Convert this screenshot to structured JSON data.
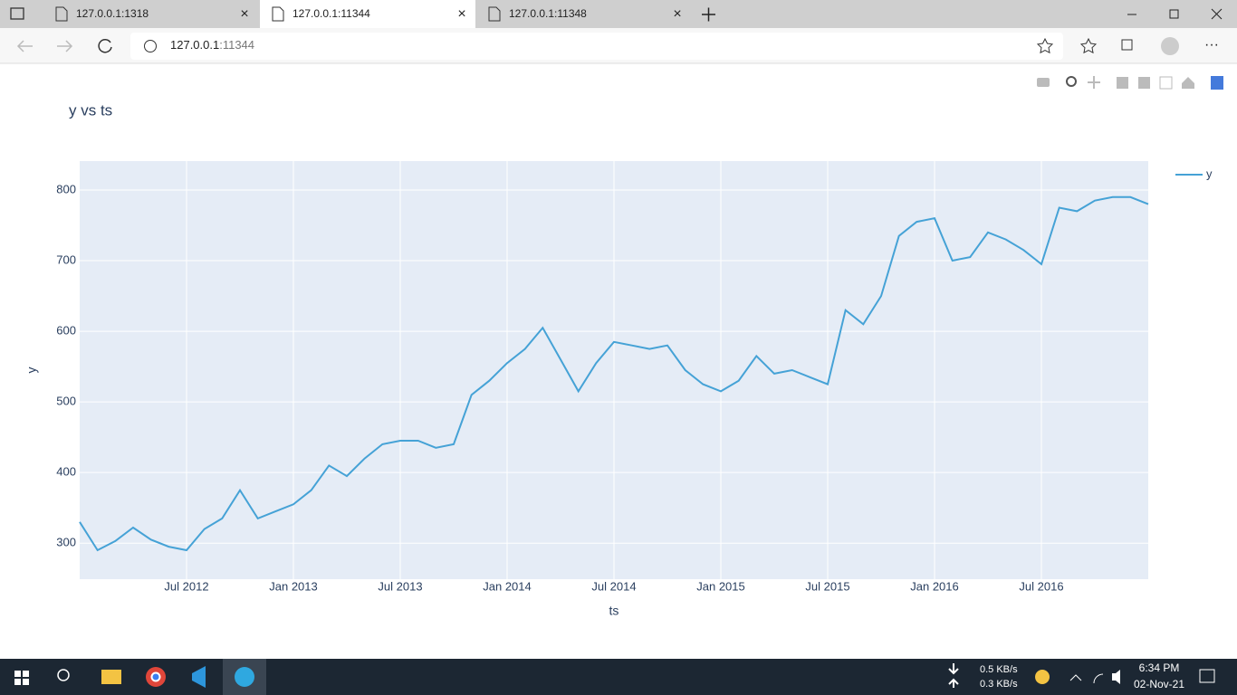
{
  "browser": {
    "tabs": [
      "127.0.0.1:1318",
      "127.0.0.1:11344",
      "127.0.0.1:11348"
    ],
    "address_host": "127.0.0.1",
    "address_port": ":11344"
  },
  "taskbar": {
    "download_speed": "0.5 KB/s",
    "upload_speed": "0.3 KB/s",
    "time": "6:34 PM",
    "date": "02-Nov-21"
  },
  "chart_data": {
    "type": "line",
    "title": "y vs ts",
    "x_label": "ts",
    "y_label": "y",
    "x": [
      "2012-01",
      "2012-02",
      "2012-03",
      "2012-04",
      "2012-05",
      "2012-06",
      "2012-07",
      "2012-08",
      "2012-09",
      "2012-10",
      "2012-11",
      "2012-12",
      "2013-01",
      "2013-02",
      "2013-03",
      "2013-04",
      "2013-05",
      "2013-06",
      "2013-07",
      "2013-08",
      "2013-09",
      "2013-10",
      "2013-11",
      "2013-12",
      "2014-01",
      "2014-02",
      "2014-03",
      "2014-04",
      "2014-05",
      "2014-06",
      "2014-07",
      "2014-08",
      "2014-09",
      "2014-10",
      "2014-11",
      "2014-12",
      "2015-01",
      "2015-02",
      "2015-03",
      "2015-04",
      "2015-05",
      "2015-06",
      "2015-07",
      "2015-08",
      "2015-09",
      "2015-10",
      "2015-11",
      "2015-12",
      "2016-01",
      "2016-02",
      "2016-03",
      "2016-04",
      "2016-05",
      "2016-06",
      "2016-07",
      "2016-08",
      "2016-09",
      "2016-10",
      "2016-11",
      "2016-12",
      "2017-01"
    ],
    "series": [
      {
        "name": "y",
        "color": "#45a2d6",
        "values": [
          330,
          290,
          303,
          322,
          305,
          295,
          290,
          320,
          335,
          375,
          335,
          345,
          355,
          375,
          410,
          395,
          420,
          440,
          445,
          445,
          435,
          440,
          510,
          530,
          555,
          575,
          605,
          560,
          515,
          555,
          585,
          580,
          575,
          580,
          545,
          525,
          515,
          530,
          565,
          540,
          545,
          535,
          525,
          630,
          610,
          650,
          735,
          755,
          760,
          700,
          705,
          740,
          730,
          715,
          695,
          775,
          770,
          785,
          790,
          790,
          780
        ]
      }
    ],
    "xlim": [
      "2012-01",
      "2017-01"
    ],
    "xticks": [
      {
        "value": "2012-07",
        "label": "Jul 2012"
      },
      {
        "value": "2013-01",
        "label": "Jan 2013"
      },
      {
        "value": "2013-07",
        "label": "Jul 2013"
      },
      {
        "value": "2014-01",
        "label": "Jan 2014"
      },
      {
        "value": "2014-07",
        "label": "Jul 2014"
      },
      {
        "value": "2015-01",
        "label": "Jan 2015"
      },
      {
        "value": "2015-07",
        "label": "Jul 2015"
      },
      {
        "value": "2016-01",
        "label": "Jan 2016"
      },
      {
        "value": "2016-07",
        "label": "Jul 2016"
      }
    ],
    "ylim": [
      249,
      841
    ],
    "yticks": [
      300,
      400,
      500,
      600,
      700,
      800
    ],
    "grid": true,
    "legend": "top-right"
  }
}
